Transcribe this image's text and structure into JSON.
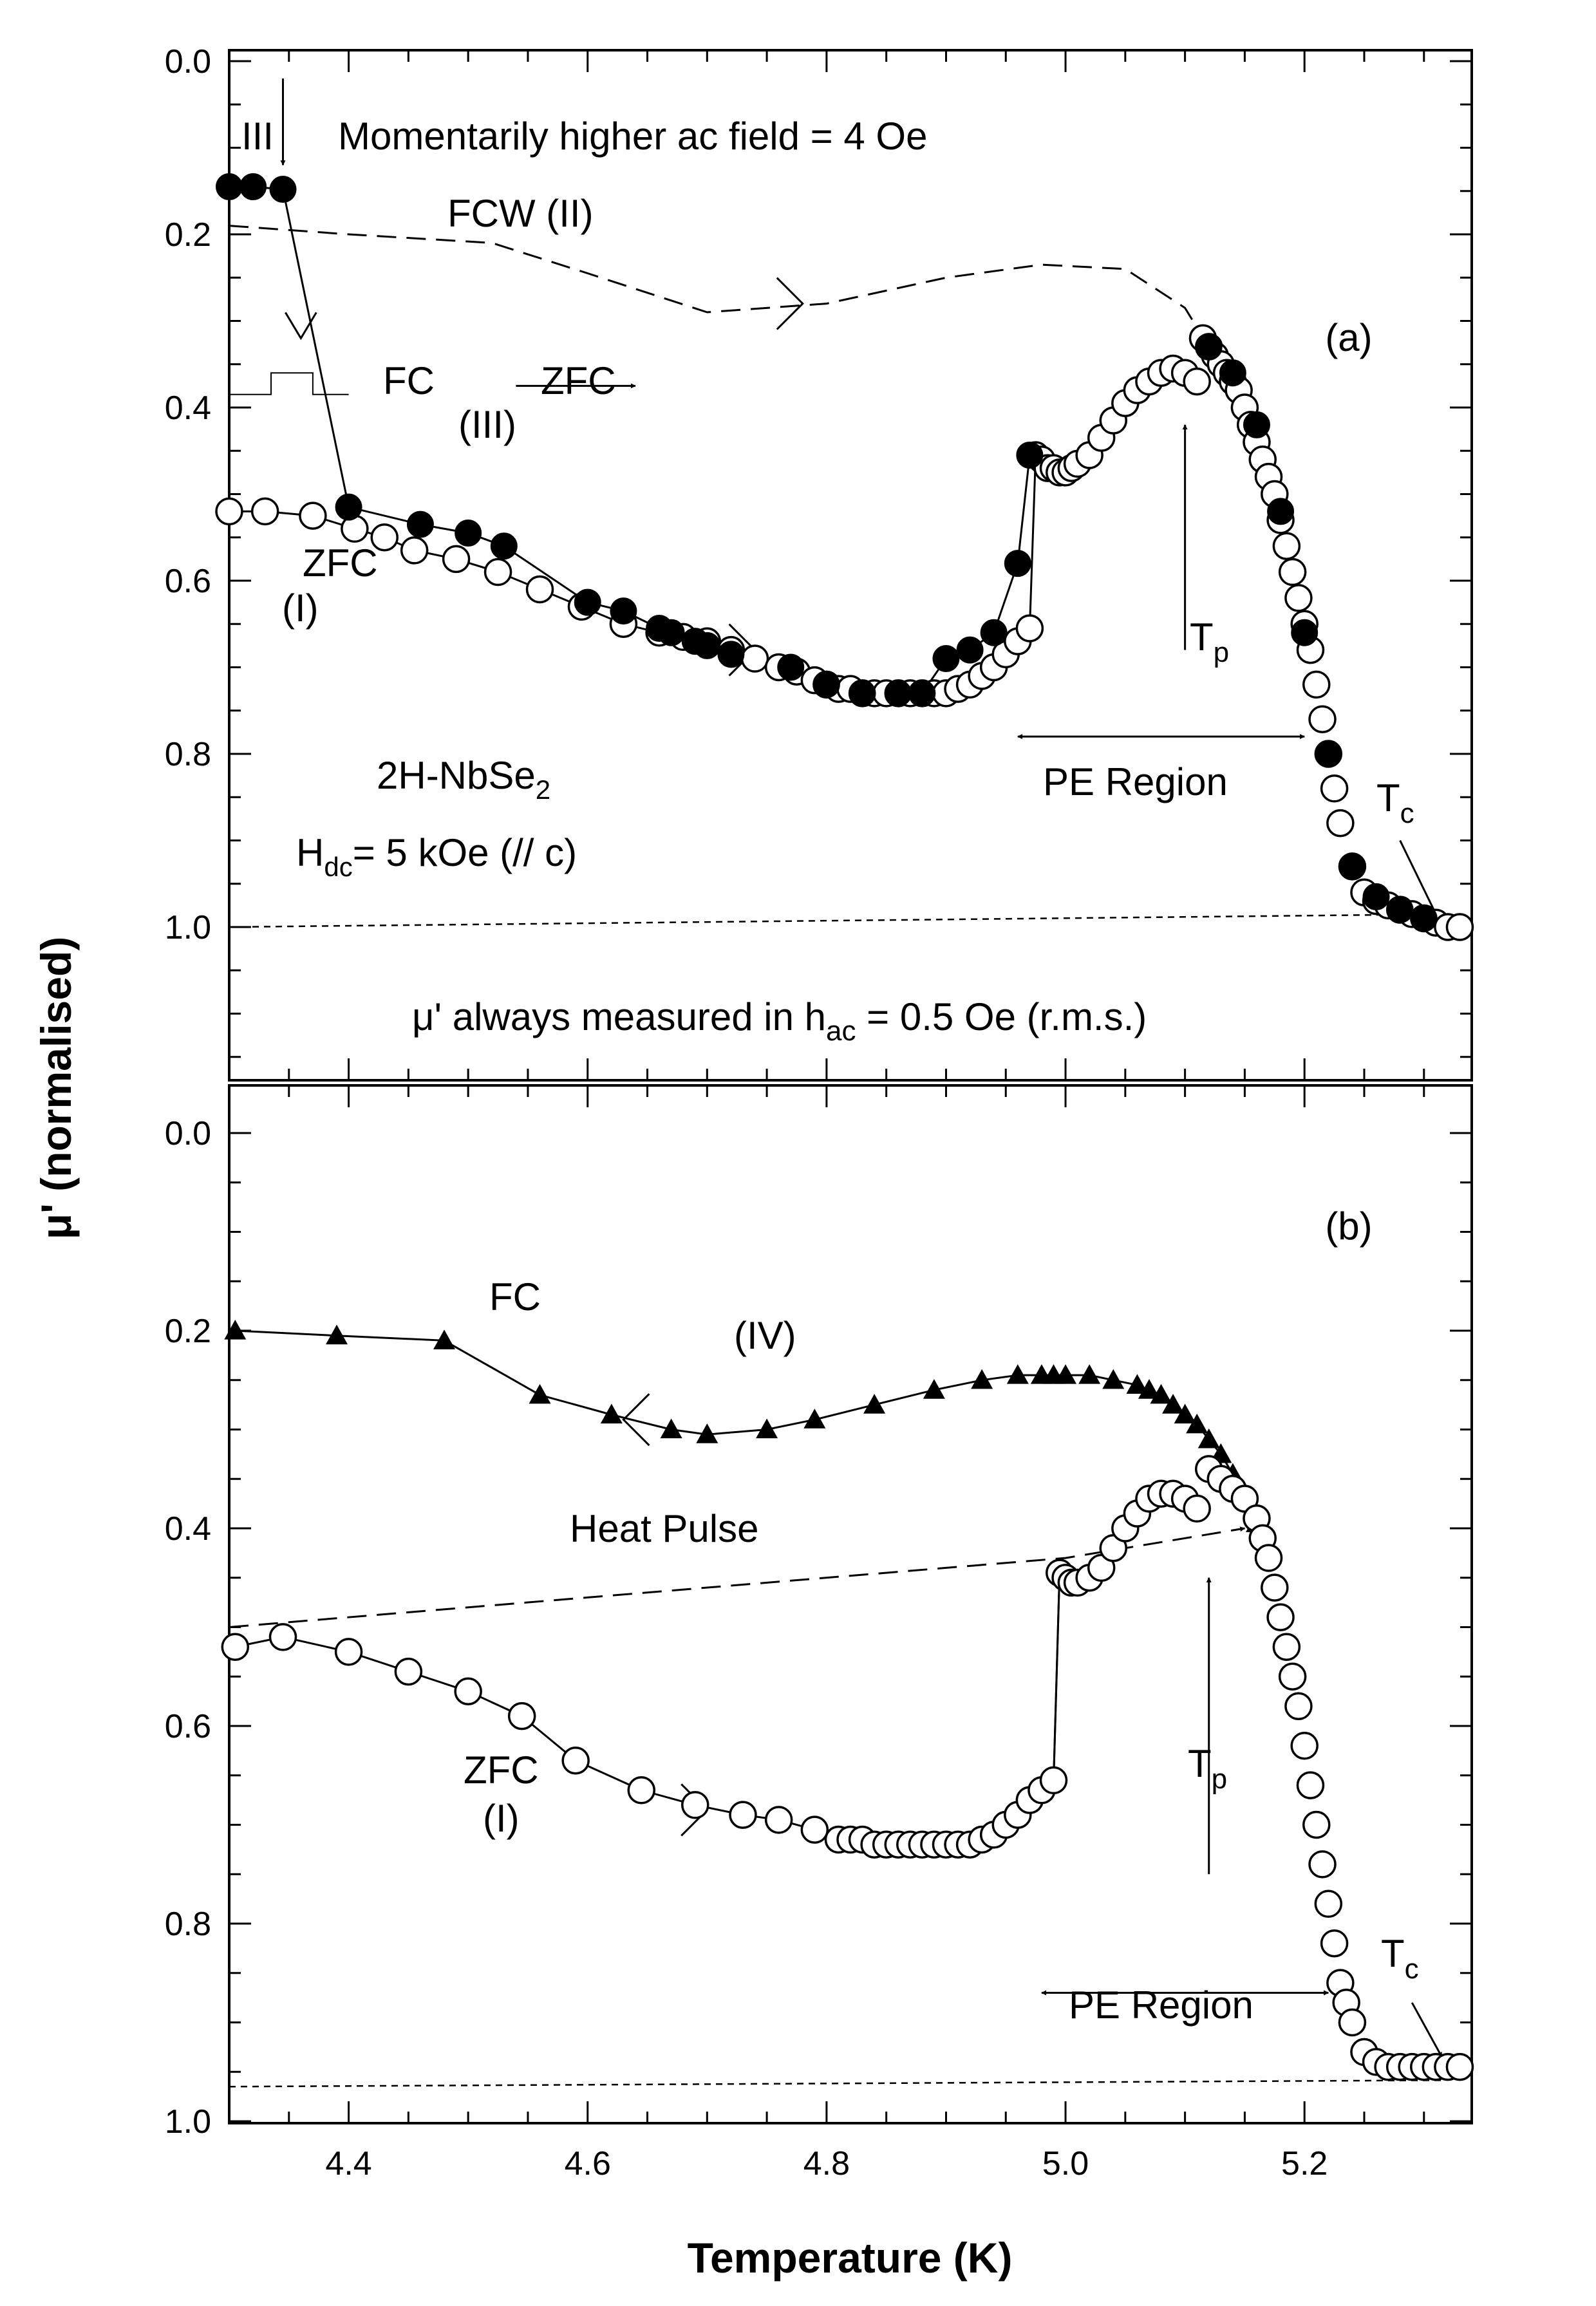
{
  "figure": {
    "xlabel": "Temperature (K)",
    "ylabel": "μ' (normalised)"
  },
  "chart_data": [
    {
      "type": "scatter",
      "panel_label": "(a)",
      "xlim": [
        4.3,
        5.34
      ],
      "ylim": [
        0.0,
        1.2
      ],
      "y_inverted": true,
      "y_ticks": [
        "0.0",
        "0.2",
        "0.4",
        "0.6",
        "0.8",
        "1.0"
      ],
      "x_ticks": [],
      "grid": false,
      "annotations": {
        "iii_label": "III",
        "field_note": "Momentarily higher ac field = 4 Oe",
        "fcw": "FCW (II)",
        "fc": "FC",
        "zfc": "ZFC",
        "iii_paren": "(III)",
        "zfc_label": "ZFC",
        "i_label": "(I)",
        "sample": "2H-NbSe",
        "sample_sub": "2",
        "hdc_h": "H",
        "hdc_sub": "dc",
        "hdc_rest": "= 5 kOe (// c)",
        "pe_region": "PE Region",
        "tp_t": "T",
        "tp_sub": "p",
        "tc_t": "T",
        "tc_sub": "c",
        "meas_a": "μ' always measured in h",
        "meas_sub": "ac",
        "meas_b": " = 0.5 Oe (r.m.s.)"
      },
      "series": [
        {
          "style": "open-circle",
          "x": [
            4.3,
            4.33,
            4.37,
            4.405,
            4.43,
            4.455,
            4.49,
            4.525,
            4.56,
            4.595,
            4.63,
            4.66,
            4.68,
            4.7,
            4.72,
            4.74,
            4.76,
            4.775,
            4.79,
            4.8,
            4.81,
            4.82,
            4.83,
            4.84,
            4.85,
            4.86,
            4.87,
            4.88,
            4.89,
            4.9,
            4.91,
            4.92,
            4.93,
            4.94,
            4.95,
            4.96,
            4.97,
            4.975,
            4.98,
            4.985,
            4.99,
            4.995,
            5.0,
            5.005,
            5.01,
            5.02,
            5.03,
            5.04,
            5.05,
            5.06,
            5.07,
            5.08,
            5.09,
            5.1,
            5.11,
            5.115,
            5.12,
            5.125,
            5.13,
            5.135,
            5.14,
            5.145,
            5.15,
            5.155,
            5.16,
            5.165,
            5.17,
            5.175,
            5.18,
            5.185,
            5.19,
            5.195,
            5.2,
            5.205,
            5.21,
            5.215,
            5.22,
            5.225,
            5.23,
            5.24,
            5.25,
            5.26,
            5.27,
            5.28,
            5.29,
            5.3,
            5.31,
            5.32,
            5.33
          ],
          "y": [
            0.52,
            0.52,
            0.525,
            0.54,
            0.55,
            0.565,
            0.575,
            0.59,
            0.61,
            0.63,
            0.65,
            0.66,
            0.665,
            0.67,
            0.68,
            0.69,
            0.7,
            0.705,
            0.715,
            0.72,
            0.725,
            0.725,
            0.73,
            0.73,
            0.73,
            0.73,
            0.73,
            0.73,
            0.73,
            0.73,
            0.725,
            0.72,
            0.71,
            0.7,
            0.685,
            0.67,
            0.655,
            0.455,
            0.46,
            0.47,
            0.47,
            0.475,
            0.475,
            0.47,
            0.465,
            0.455,
            0.435,
            0.415,
            0.395,
            0.38,
            0.37,
            0.36,
            0.355,
            0.36,
            0.37,
            0.32,
            0.33,
            0.34,
            0.35,
            0.36,
            0.37,
            0.38,
            0.4,
            0.42,
            0.44,
            0.46,
            0.48,
            0.5,
            0.53,
            0.56,
            0.59,
            0.62,
            0.65,
            0.68,
            0.72,
            0.76,
            0.8,
            0.84,
            0.88,
            0.93,
            0.96,
            0.97,
            0.975,
            0.98,
            0.985,
            0.99,
            0.995,
            1.0,
            1.0
          ]
        },
        {
          "style": "filled-circle",
          "x": [
            4.3,
            4.32,
            4.345,
            4.4,
            4.46,
            4.5,
            4.53,
            4.6,
            4.63,
            4.66,
            4.67,
            4.69,
            4.7,
            4.72,
            4.77,
            4.8,
            4.83,
            4.86,
            4.88,
            4.9,
            4.92,
            4.94,
            4.96,
            4.97,
            5.12,
            5.14,
            5.16,
            5.18,
            5.2,
            5.22,
            5.24,
            5.26,
            5.28,
            5.3
          ],
          "y": [
            0.145,
            0.145,
            0.148,
            0.515,
            0.535,
            0.545,
            0.56,
            0.625,
            0.635,
            0.655,
            0.66,
            0.67,
            0.675,
            0.685,
            0.7,
            0.72,
            0.73,
            0.73,
            0.73,
            0.69,
            0.68,
            0.66,
            0.58,
            0.455,
            0.33,
            0.36,
            0.42,
            0.52,
            0.66,
            0.8,
            0.93,
            0.965,
            0.98,
            0.99
          ]
        }
      ]
    },
    {
      "type": "scatter",
      "panel_label": "(b)",
      "xlim": [
        4.3,
        5.34
      ],
      "ylim": [
        -0.05,
        1.0
      ],
      "y_inverted": true,
      "y_ticks": [
        "0.0",
        "0.2",
        "0.4",
        "0.6",
        "0.8",
        "1.0"
      ],
      "x_ticks": [
        "4.4",
        "4.6",
        "4.8",
        "5.0",
        "5.2"
      ],
      "grid": false,
      "annotations": {
        "fc": "FC",
        "iv": "(IV)",
        "heat_pulse": "Heat Pulse",
        "zfc_label": "ZFC",
        "i_label": "(I)",
        "tp_t": "T",
        "tp_sub": "p",
        "tc_t": "T",
        "tc_sub": "c",
        "pe_region": "PE Region"
      },
      "series": [
        {
          "style": "filled-triangle",
          "x": [
            4.305,
            4.39,
            4.48,
            4.56,
            4.62,
            4.67,
            4.7,
            4.75,
            4.79,
            4.84,
            4.89,
            4.93,
            4.96,
            4.98,
            4.99,
            5.0,
            5.02,
            5.04,
            5.06,
            5.07,
            5.08,
            5.09,
            5.1,
            5.11,
            5.12,
            5.13,
            5.14,
            5.15,
            5.16
          ],
          "y": [
            0.2,
            0.205,
            0.21,
            0.265,
            0.285,
            0.3,
            0.305,
            0.3,
            0.29,
            0.275,
            0.26,
            0.25,
            0.245,
            0.245,
            0.245,
            0.245,
            0.245,
            0.25,
            0.255,
            0.26,
            0.265,
            0.275,
            0.285,
            0.295,
            0.31,
            0.325,
            0.345,
            0.37,
            0.395
          ]
        },
        {
          "style": "open-circle",
          "x": [
            4.305,
            4.345,
            4.4,
            4.45,
            4.5,
            4.545,
            4.59,
            4.645,
            4.69,
            4.73,
            4.76,
            4.79,
            4.81,
            4.82,
            4.83,
            4.84,
            4.85,
            4.86,
            4.87,
            4.88,
            4.89,
            4.9,
            4.91,
            4.92,
            4.93,
            4.94,
            4.95,
            4.96,
            4.97,
            4.98,
            4.99,
            4.995,
            5.0,
            5.005,
            5.01,
            5.02,
            5.03,
            5.04,
            5.05,
            5.06,
            5.07,
            5.08,
            5.09,
            5.1,
            5.11,
            5.12,
            5.13,
            5.14,
            5.15,
            5.16,
            5.165,
            5.17,
            5.175,
            5.18,
            5.185,
            5.19,
            5.195,
            5.2,
            5.205,
            5.21,
            5.215,
            5.22,
            5.225,
            5.23,
            5.235,
            5.24,
            5.25,
            5.26,
            5.27,
            5.28,
            5.29,
            5.3,
            5.31,
            5.32,
            5.33
          ],
          "y": [
            0.52,
            0.51,
            0.525,
            0.545,
            0.565,
            0.59,
            0.635,
            0.665,
            0.68,
            0.69,
            0.695,
            0.705,
            0.715,
            0.715,
            0.715,
            0.72,
            0.72,
            0.72,
            0.72,
            0.72,
            0.72,
            0.72,
            0.72,
            0.72,
            0.715,
            0.71,
            0.7,
            0.69,
            0.675,
            0.665,
            0.655,
            0.445,
            0.45,
            0.455,
            0.455,
            0.45,
            0.44,
            0.42,
            0.4,
            0.385,
            0.37,
            0.365,
            0.365,
            0.37,
            0.38,
            0.34,
            0.35,
            0.36,
            0.37,
            0.39,
            0.41,
            0.43,
            0.46,
            0.49,
            0.52,
            0.55,
            0.58,
            0.62,
            0.66,
            0.7,
            0.74,
            0.78,
            0.82,
            0.86,
            0.88,
            0.9,
            0.93,
            0.94,
            0.945,
            0.945,
            0.945,
            0.945,
            0.945,
            0.945,
            0.945
          ]
        }
      ]
    }
  ]
}
